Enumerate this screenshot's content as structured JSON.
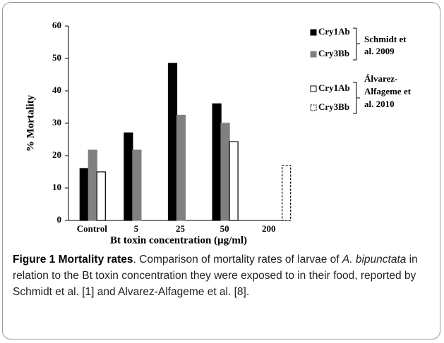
{
  "chart_data": {
    "type": "bar",
    "categories": [
      "Control",
      "5",
      "25",
      "50",
      "200"
    ],
    "series": [
      {
        "name": "Cry1Ab",
        "color": "#000000",
        "edgecolor": "#000000",
        "linestyle": "solid",
        "values": [
          16,
          27,
          48.5,
          36,
          null
        ]
      },
      {
        "name": "Cry3Bb",
        "color": "#808080",
        "edgecolor": "#808080",
        "linestyle": "solid",
        "values": [
          21.7,
          21.7,
          32.5,
          30,
          null
        ]
      },
      {
        "name": "Cry1Ab",
        "color": "#ffffff",
        "edgecolor": "#000000",
        "linestyle": "solid",
        "values": [
          15,
          null,
          null,
          24.3,
          null
        ]
      },
      {
        "name": "Cry3Bb",
        "color": "#ffffff",
        "edgecolor": "#000000",
        "linestyle": "dashed",
        "values": [
          null,
          null,
          null,
          null,
          17
        ]
      }
    ],
    "legend_groups": [
      {
        "label_lines": [
          "Schmidt et",
          "al. 2009"
        ]
      },
      {
        "label_lines": [
          "Álvarez-",
          "Alfageme et",
          "al. 2010"
        ]
      }
    ],
    "ylabel": "% Mortality",
    "xlabel": "Bt toxin concentration (µg/ml)",
    "ylim": [
      0,
      60
    ],
    "yticks": [
      0,
      10,
      20,
      30,
      40,
      50,
      60
    ],
    "grid": false
  },
  "caption": {
    "label": "Figure 1 Mortality rates",
    "text_1": ". Comparison of mortality rates of larvae of ",
    "species": "A. bipunctata",
    "text_2": " in relation to the Bt toxin concentration they were exposed to in their food, reported by Schmidt et al. [1] and Alvarez-Alfageme et al. [8]."
  }
}
